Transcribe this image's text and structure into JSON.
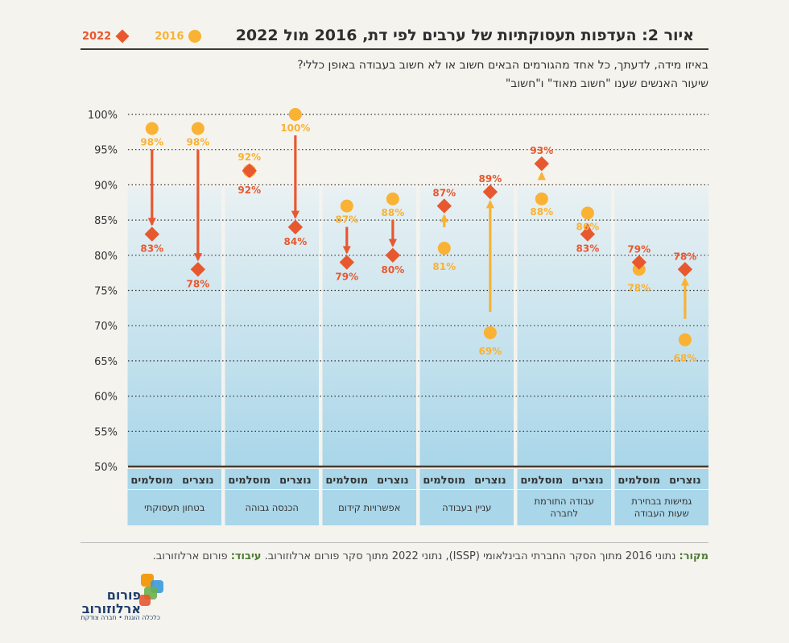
{
  "title": "איור 2: העדפות תעסוקתיות של ערבים לפי דת, 2016 מול 2022",
  "legend": {
    "label_2016": "2016",
    "label_2022": "2022"
  },
  "question": "באיזו מידה, לדעתך, כל אחד מהגורמים הבאים חשוב או לא חשוב בעבודה באופן כללי?",
  "note": "שיעור האנשים שענו \"חשוב מאוד\" ו\"חשוב\"",
  "colors": {
    "y2016": "#f9b233",
    "y2022": "#e8582f"
  },
  "chart_data": {
    "type": "scatter",
    "title": "איור 2: העדפות תעסוקתיות של ערבים לפי דת, 2016 מול 2022",
    "ylim": [
      50,
      100
    ],
    "yticks": [
      "50%",
      "55%",
      "60%",
      "65%",
      "70%",
      "75%",
      "80%",
      "85%",
      "90%",
      "95%",
      "100%"
    ],
    "series_names": [
      "2016",
      "2022"
    ],
    "groups": [
      {
        "label": "בטחון תעסוקתי",
        "points": [
          {
            "religion": "מוסלמים",
            "v2016": 98,
            "v2022": 83,
            "label2016": "98%",
            "label2022": "83%"
          },
          {
            "religion": "נוצרים",
            "v2016": 98,
            "v2022": 78,
            "label2016": "98%",
            "label2022": "78%"
          }
        ]
      },
      {
        "label": "הכנסה גבוהה",
        "points": [
          {
            "religion": "מוסלמים",
            "v2016": 92,
            "v2022": 92,
            "label2016": "92%",
            "label2022": "92%"
          },
          {
            "religion": "נוצרים",
            "v2016": 100,
            "v2022": 84,
            "label2016": "100%",
            "label2022": "84%"
          }
        ]
      },
      {
        "label": "אפשרויות קידום",
        "points": [
          {
            "religion": "מוסלמים",
            "v2016": 87,
            "v2022": 79,
            "label2016": "87%",
            "label2022": "79%"
          },
          {
            "religion": "נוצרים",
            "v2016": 88,
            "v2022": 80,
            "label2016": "88%",
            "label2022": "80%"
          }
        ]
      },
      {
        "label": "עניין בעבודה",
        "points": [
          {
            "religion": "מוסלמים",
            "v2016": 81,
            "v2022": 87,
            "label2016": "81%",
            "label2022": "87%"
          },
          {
            "religion": "נוצרים",
            "v2016": 69,
            "v2022": 89,
            "label2016": "69%",
            "label2022": "89%"
          }
        ]
      },
      {
        "label": "עבודה התורמת לחברה",
        "points": [
          {
            "religion": "מוסלמים",
            "v2016": 88,
            "v2022": 93,
            "label2016": "88%",
            "label2022": "93%"
          },
          {
            "religion": "נוצרים",
            "v2016": 86,
            "v2022": 83,
            "label2016": "86%",
            "label2022": "83%"
          }
        ]
      },
      {
        "label": "גמישות בבחירת שעות העבודה",
        "points": [
          {
            "religion": "מוסלמים",
            "v2016": 78,
            "v2022": 79,
            "label2016": "78%",
            "label2022": "79%"
          },
          {
            "religion": "נוצרים",
            "v2016": 68,
            "v2022": 78,
            "label2016": "68%",
            "label2022": "78%"
          }
        ]
      }
    ]
  },
  "source": {
    "label": "מקור:",
    "text": " נתוני 2016 מתוך הסקר החברתי הבינלאומי (ISSP), נתוני 2022 מתוך סקר פורום ארלוזורוב. ",
    "processing_label": "עיבוד:",
    "processing_text": " פורום ארלוזורוב."
  },
  "logo": {
    "name": "פורום ארלוזורוב",
    "tagline": "כלכלה הוגנת • חברה צודקת"
  }
}
